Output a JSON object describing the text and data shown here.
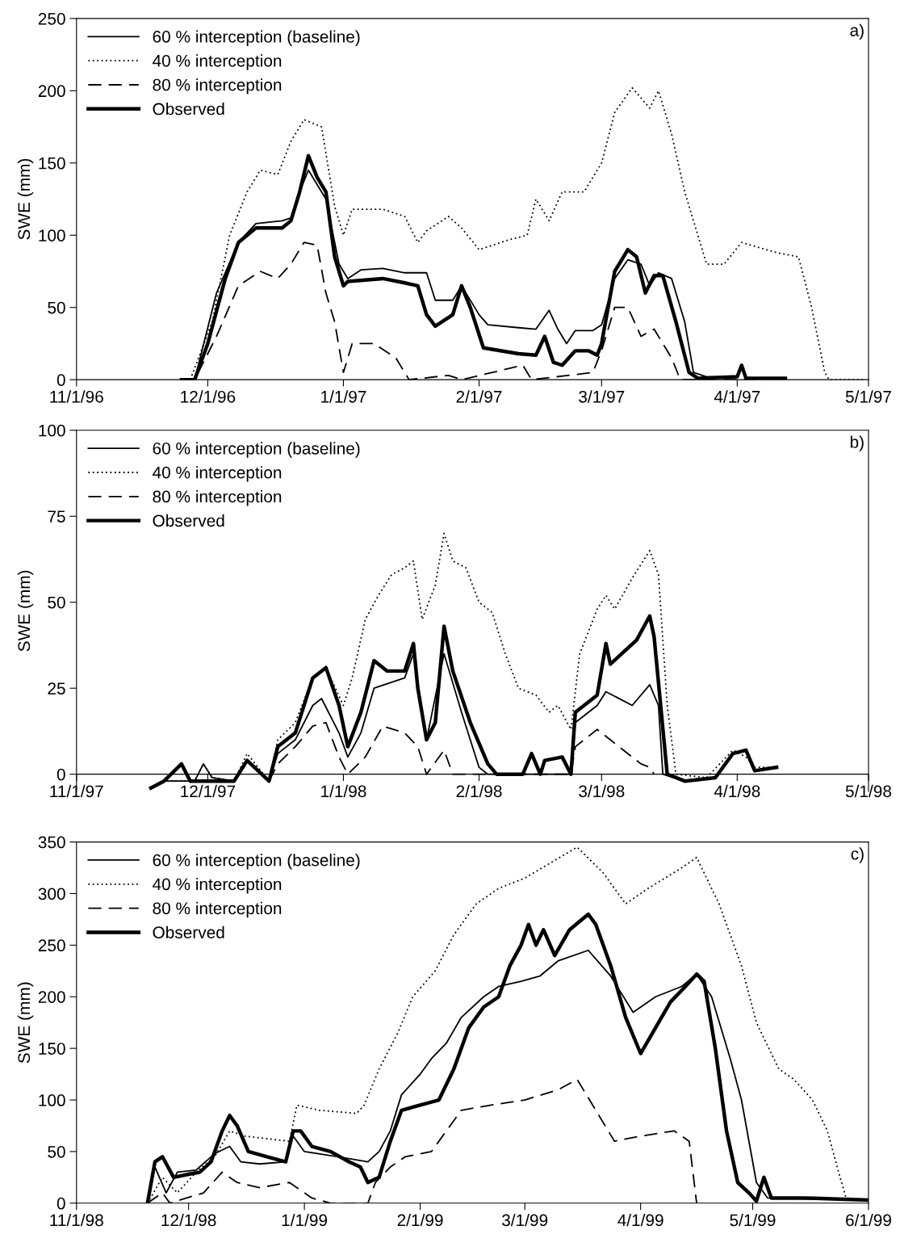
{
  "chart_data": [
    {
      "type": "line",
      "ylabel": "SWE (mm)",
      "annotations": [
        "a)"
      ],
      "legend": "top left",
      "grid": false,
      "xlim": [
        "1996-11-01",
        "1997-05-01"
      ],
      "xticks": [
        {
          "value": "1996-11-01",
          "label": "11/1/96"
        },
        {
          "value": "1996-12-01",
          "label": "12/1/96"
        },
        {
          "value": "1997-01-01",
          "label": "1/1/97"
        },
        {
          "value": "1997-02-01",
          "label": "2/1/97"
        },
        {
          "value": "1997-03-01",
          "label": "3/1/97"
        },
        {
          "value": "1997-04-01",
          "label": "4/1/97"
        },
        {
          "value": "1997-05-01",
          "label": "5/1/97"
        }
      ],
      "ylim": [
        0,
        250
      ],
      "yticks": [
        0,
        50,
        100,
        150,
        200,
        250
      ],
      "series": [
        {
          "name": "60 % interception (baseline)",
          "color": "#000000",
          "line_style": "solid",
          "x": [
            "1996-11-25",
            "1996-11-28",
            "1996-12-03",
            "1996-12-08",
            "1996-12-12",
            "1996-12-18",
            "1996-12-20",
            "1996-12-22",
            "1996-12-24",
            "1996-12-28",
            "1996-12-31",
            "1997-01-02",
            "1997-01-05",
            "1997-01-10",
            "1997-01-15",
            "1997-01-20",
            "1997-01-22",
            "1997-01-26",
            "1997-01-28",
            "1997-02-01",
            "1997-02-03",
            "1997-02-10",
            "1997-02-14",
            "1997-02-17",
            "1997-02-19",
            "1997-02-21",
            "1997-02-23",
            "1997-02-27",
            "1997-03-01",
            "1997-03-04",
            "1997-03-07",
            "1997-03-10",
            "1997-03-12",
            "1997-03-14",
            "1997-03-17",
            "1997-03-20",
            "1997-03-22",
            "1997-03-25",
            "1997-04-01",
            "1997-04-02",
            "1997-04-03",
            "1997-04-12"
          ],
          "values": [
            0,
            0,
            60,
            95,
            108,
            110,
            112,
            130,
            145,
            125,
            80,
            70,
            76,
            77,
            74,
            74,
            55,
            55,
            65,
            45,
            38,
            36,
            35,
            48,
            35,
            25,
            34,
            34,
            38,
            70,
            83,
            80,
            65,
            74,
            70,
            40,
            5,
            2,
            2,
            10,
            1,
            1
          ]
        },
        {
          "name": "40 % interception",
          "color": "#000000",
          "line_style": "dotted",
          "x": [
            "1996-11-25",
            "1996-11-27",
            "1996-12-02",
            "1996-12-06",
            "1996-12-10",
            "1996-12-13",
            "1996-12-17",
            "1996-12-20",
            "1996-12-23",
            "1996-12-27",
            "1996-12-30",
            "1997-01-01",
            "1997-01-03",
            "1997-01-10",
            "1997-01-15",
            "1997-01-18",
            "1997-01-20",
            "1997-01-25",
            "1997-01-28",
            "1997-02-01",
            "1997-02-08",
            "1997-02-12",
            "1997-02-14",
            "1997-02-17",
            "1997-02-20",
            "1997-02-25",
            "1997-03-01",
            "1997-03-04",
            "1997-03-08",
            "1997-03-12",
            "1997-03-14",
            "1997-03-17",
            "1997-03-20",
            "1997-03-25",
            "1997-03-29",
            "1997-04-02",
            "1997-04-10",
            "1997-04-15",
            "1997-04-18",
            "1997-04-21",
            "1997-04-22",
            "1997-04-30"
          ],
          "values": [
            0,
            0,
            40,
            100,
            130,
            145,
            142,
            165,
            180,
            175,
            120,
            100,
            118,
            118,
            113,
            95,
            103,
            113,
            105,
            90,
            97,
            100,
            125,
            110,
            130,
            130,
            150,
            185,
            202,
            188,
            200,
            170,
            130,
            80,
            80,
            95,
            88,
            85,
            50,
            5,
            0,
            0
          ]
        },
        {
          "name": "80 % interception",
          "color": "#000000",
          "line_style": "dashed",
          "x": [
            "1996-11-25",
            "1996-11-28",
            "1996-12-03",
            "1996-12-08",
            "1996-12-13",
            "1996-12-17",
            "1996-12-20",
            "1996-12-23",
            "1996-12-26",
            "1996-12-28",
            "1996-12-30",
            "1997-01-01",
            "1997-01-03",
            "1997-01-08",
            "1997-01-13",
            "1997-01-16",
            "1997-01-25",
            "1997-01-28",
            "1997-02-11",
            "1997-02-13",
            "1997-02-27",
            "1997-03-01",
            "1997-03-04",
            "1997-03-07",
            "1997-03-10",
            "1997-03-13",
            "1997-03-17",
            "1997-03-19",
            "1997-04-05"
          ],
          "values": [
            0,
            0,
            30,
            65,
            75,
            70,
            80,
            95,
            93,
            60,
            40,
            5,
            25,
            25,
            15,
            0,
            3,
            0,
            10,
            0,
            5,
            20,
            50,
            50,
            30,
            35,
            15,
            0,
            0
          ]
        },
        {
          "name": "Observed",
          "color": "#000000",
          "line_style": "solid",
          "x": [
            "1996-11-25",
            "1996-11-28",
            "1996-12-01",
            "1996-12-05",
            "1996-12-08",
            "1996-12-12",
            "1996-12-18",
            "1996-12-20",
            "1996-12-22",
            "1996-12-24",
            "1996-12-26",
            "1996-12-28",
            "1996-12-30",
            "1997-01-01",
            "1997-01-02",
            "1997-01-10",
            "1997-01-15",
            "1997-01-18",
            "1997-01-20",
            "1997-01-22",
            "1997-01-26",
            "1997-01-28",
            "1997-01-30",
            "1997-02-02",
            "1997-02-10",
            "1997-02-14",
            "1997-02-16",
            "1997-02-18",
            "1997-02-20",
            "1997-02-23",
            "1997-02-26",
            "1997-02-28",
            "1997-03-01",
            "1997-03-04",
            "1997-03-07",
            "1997-03-09",
            "1997-03-11",
            "1997-03-13",
            "1997-03-15",
            "1997-03-18",
            "1997-03-21",
            "1997-03-23",
            "1997-04-01",
            "1997-04-02",
            "1997-04-03",
            "1997-04-12"
          ],
          "values": [
            0,
            0,
            25,
            70,
            95,
            105,
            105,
            110,
            130,
            155,
            140,
            130,
            85,
            65,
            68,
            70,
            67,
            65,
            45,
            37,
            45,
            65,
            50,
            22,
            18,
            17,
            30,
            12,
            10,
            20,
            20,
            17,
            25,
            75,
            90,
            85,
            60,
            72,
            72,
            40,
            5,
            1,
            2,
            10,
            1,
            1
          ]
        }
      ]
    },
    {
      "type": "line",
      "ylabel": "SWE (mm)",
      "annotations": [
        "b)"
      ],
      "legend": "top left",
      "grid": false,
      "xlim": [
        "1997-11-01",
        "1998-05-01"
      ],
      "xticks": [
        {
          "value": "1997-11-01",
          "label": "11/1/97"
        },
        {
          "value": "1997-12-01",
          "label": "12/1/97"
        },
        {
          "value": "1998-01-01",
          "label": "1/1/98"
        },
        {
          "value": "1998-02-01",
          "label": "2/1/98"
        },
        {
          "value": "1998-03-01",
          "label": "3/1/98"
        },
        {
          "value": "1998-04-01",
          "label": "4/1/98"
        },
        {
          "value": "1998-05-01",
          "label": "5/1/98"
        }
      ],
      "ylim": [
        -5,
        100
      ],
      "yticks": [
        0,
        25,
        50,
        75,
        100
      ],
      "series": [
        {
          "name": "60 % interception (baseline)",
          "color": "#000000",
          "line_style": "solid",
          "x": [
            "1997-11-18",
            "1997-11-21",
            "1997-11-28",
            "1997-11-30",
            "1997-12-02",
            "1997-12-07",
            "1997-12-10",
            "1997-12-15",
            "1997-12-17",
            "1997-12-21",
            "1997-12-25",
            "1997-12-27",
            "1997-12-31",
            "1998-01-02",
            "1998-01-05",
            "1998-01-08",
            "1998-01-15",
            "1998-01-17",
            "1998-01-20",
            "1998-01-24",
            "1998-01-28",
            "1998-02-01",
            "1998-02-03",
            "1998-02-22",
            "1998-02-23",
            "1998-02-28",
            "1998-03-02",
            "1998-03-08",
            "1998-03-12",
            "1998-03-14",
            "1998-03-15",
            "1998-03-20",
            "1998-03-27",
            "1998-03-31",
            "1998-04-03",
            "1998-04-05",
            "1998-04-10"
          ],
          "values": [
            -4,
            -2,
            -2,
            3,
            -1,
            -2,
            4,
            -2,
            6,
            10,
            20,
            22,
            12,
            5,
            12,
            25,
            28,
            35,
            10,
            35,
            18,
            2,
            0,
            0,
            15,
            20,
            24,
            20,
            26,
            20,
            0,
            -2,
            -1,
            6,
            7,
            1,
            2
          ]
        },
        {
          "name": "40 % interception",
          "color": "#000000",
          "line_style": "dotted",
          "x": [
            "1997-11-18",
            "1997-11-21",
            "1997-11-28",
            "1997-11-30",
            "1997-12-02",
            "1997-12-07",
            "1997-12-10",
            "1997-12-15",
            "1997-12-17",
            "1997-12-21",
            "1997-12-25",
            "1997-12-28",
            "1998-01-01",
            "1998-01-03",
            "1998-01-06",
            "1998-01-09",
            "1998-01-12",
            "1998-01-15",
            "1998-01-17",
            "1998-01-19",
            "1998-01-22",
            "1998-01-24",
            "1998-01-26",
            "1998-01-29",
            "1998-02-01",
            "1998-02-04",
            "1998-02-07",
            "1998-02-10",
            "1998-02-14",
            "1998-02-17",
            "1998-02-19",
            "1998-02-22",
            "1998-02-24",
            "1998-02-28",
            "1998-03-02",
            "1998-03-04",
            "1998-03-08",
            "1998-03-12",
            "1998-03-14",
            "1998-03-16",
            "1998-03-18",
            "1998-03-25",
            "1998-03-31",
            "1998-04-03",
            "1998-04-05",
            "1998-04-10"
          ],
          "values": [
            -4,
            -2,
            -2,
            3,
            -1,
            -2,
            6,
            -2,
            10,
            15,
            28,
            31,
            20,
            28,
            45,
            52,
            58,
            60,
            62,
            45,
            55,
            70,
            62,
            60,
            50,
            47,
            35,
            25,
            23,
            18,
            20,
            13,
            35,
            48,
            52,
            48,
            57,
            65,
            58,
            20,
            0,
            -1,
            7,
            5,
            2,
            2
          ]
        },
        {
          "name": "80 % interception",
          "color": "#000000",
          "line_style": "dashed",
          "x": [
            "1997-12-15",
            "1997-12-17",
            "1997-12-21",
            "1997-12-25",
            "1997-12-28",
            "1997-12-31",
            "1998-01-02",
            "1998-01-06",
            "1998-01-10",
            "1998-01-15",
            "1998-01-18",
            "1998-01-20",
            "1998-01-24",
            "1998-01-26",
            "1998-02-22",
            "1998-02-23",
            "1998-02-28",
            "1998-03-03",
            "1998-03-08",
            "1998-03-10",
            "1998-03-12",
            "1998-03-13"
          ],
          "values": [
            -2,
            3,
            8,
            14,
            15,
            5,
            0,
            5,
            14,
            12,
            8,
            0,
            7,
            0,
            0,
            8,
            13,
            10,
            5,
            3,
            2,
            0
          ]
        },
        {
          "name": "Observed",
          "color": "#000000",
          "line_style": "solid",
          "x": [
            "1997-11-18",
            "1997-11-21",
            "1997-11-25",
            "1997-11-27",
            "1997-12-07",
            "1997-12-10",
            "1997-12-15",
            "1997-12-17",
            "1997-12-21",
            "1997-12-25",
            "1997-12-28",
            "1997-12-31",
            "1998-01-02",
            "1998-01-05",
            "1998-01-08",
            "1998-01-11",
            "1998-01-15",
            "1998-01-17",
            "1998-01-18",
            "1998-01-20",
            "1998-01-22",
            "1998-01-24",
            "1998-01-26",
            "1998-01-30",
            "1998-02-03",
            "1998-02-05",
            "1998-02-11",
            "1998-02-13",
            "1998-02-15",
            "1998-02-16",
            "1998-02-20",
            "1998-02-22",
            "1998-02-23",
            "1998-02-28",
            "1998-03-02",
            "1998-03-03",
            "1998-03-09",
            "1998-03-12",
            "1998-03-13",
            "1998-03-16",
            "1998-03-20",
            "1998-03-27",
            "1998-03-31",
            "1998-04-03",
            "1998-04-05",
            "1998-04-10"
          ],
          "values": [
            -4,
            -2,
            3,
            -2,
            -2,
            4,
            -2,
            8,
            12,
            28,
            31,
            20,
            8,
            18,
            33,
            30,
            30,
            38,
            25,
            10,
            15,
            43,
            30,
            15,
            3,
            0,
            0,
            6,
            0,
            4,
            5,
            0,
            18,
            23,
            38,
            32,
            39,
            46,
            40,
            0,
            -2,
            -1,
            6,
            7,
            1,
            2
          ]
        }
      ]
    },
    {
      "type": "line",
      "ylabel": "SWE (mm)",
      "annotations": [
        "c)"
      ],
      "legend": "top left",
      "grid": false,
      "xlim": [
        "1998-11-01",
        "1999-06-01"
      ],
      "xticks": [
        {
          "value": "1998-11-01",
          "label": "11/1/98"
        },
        {
          "value": "1998-12-01",
          "label": "12/1/98"
        },
        {
          "value": "1999-01-01",
          "label": "1/1/99"
        },
        {
          "value": "1999-02-01",
          "label": "2/1/99"
        },
        {
          "value": "1999-03-01",
          "label": "3/1/99"
        },
        {
          "value": "1999-04-01",
          "label": "4/1/99"
        },
        {
          "value": "1999-05-01",
          "label": "5/1/99"
        },
        {
          "value": "1999-06-01",
          "label": "6/1/99"
        }
      ],
      "ylim": [
        0,
        350
      ],
      "yticks": [
        0,
        50,
        100,
        150,
        200,
        250,
        300,
        350
      ],
      "series": [
        {
          "name": "60 % interception (baseline)",
          "color": "#000000",
          "line_style": "solid",
          "x": [
            "1998-11-20",
            "1998-11-22",
            "1998-11-25",
            "1998-11-28",
            "1998-12-03",
            "1998-12-08",
            "1998-12-12",
            "1998-12-15",
            "1998-12-20",
            "1998-12-27",
            "1998-12-29",
            "1999-01-01",
            "1999-01-10",
            "1999-01-18",
            "1999-01-21",
            "1999-01-24",
            "1999-01-27",
            "1999-02-01",
            "1999-02-04",
            "1999-02-08",
            "1999-02-12",
            "1999-02-18",
            "1999-02-22",
            "1999-02-28",
            "1999-03-05",
            "1999-03-10",
            "1999-03-18",
            "1999-03-24",
            "1999-03-30",
            "1999-04-05",
            "1999-04-12",
            "1999-04-16",
            "1999-04-20",
            "1999-04-25",
            "1999-04-28",
            "1999-05-02",
            "1999-05-05",
            "1999-06-01"
          ],
          "values": [
            0,
            35,
            10,
            30,
            32,
            48,
            55,
            40,
            38,
            40,
            65,
            50,
            45,
            40,
            50,
            70,
            105,
            125,
            140,
            155,
            180,
            200,
            210,
            215,
            220,
            235,
            245,
            220,
            185,
            200,
            210,
            222,
            200,
            140,
            100,
            20,
            5,
            3
          ]
        },
        {
          "name": "40 % interception",
          "color": "#000000",
          "line_style": "dotted",
          "x": [
            "1998-11-20",
            "1998-11-24",
            "1998-11-28",
            "1998-12-03",
            "1998-12-08",
            "1998-12-12",
            "1998-12-16",
            "1998-12-28",
            "1998-12-30",
            "1999-01-05",
            "1999-01-15",
            "1999-01-17",
            "1999-01-21",
            "1999-01-26",
            "1999-01-30",
            "1999-02-05",
            "1999-02-10",
            "1999-02-16",
            "1999-02-22",
            "1999-03-01",
            "1999-03-08",
            "1999-03-15",
            "1999-03-22",
            "1999-03-28",
            "1999-04-03",
            "1999-04-12",
            "1999-04-16",
            "1999-04-22",
            "1999-04-28",
            "1999-05-02",
            "1999-05-08",
            "1999-05-12",
            "1999-05-17",
            "1999-05-21",
            "1999-05-24",
            "1999-05-26",
            "1999-06-01"
          ],
          "values": [
            0,
            25,
            10,
            30,
            45,
            70,
            65,
            60,
            95,
            90,
            87,
            95,
            130,
            165,
            200,
            225,
            260,
            290,
            305,
            315,
            330,
            345,
            320,
            290,
            305,
            325,
            335,
            290,
            230,
            175,
            130,
            120,
            100,
            70,
            30,
            5,
            3
          ]
        },
        {
          "name": "80 % interception",
          "color": "#000000",
          "line_style": "dashed",
          "x": [
            "1998-11-20",
            "1998-11-24",
            "1998-11-26",
            "1998-12-05",
            "1998-12-10",
            "1998-12-14",
            "1998-12-20",
            "1998-12-28",
            "1999-01-03",
            "1999-01-08",
            "1999-01-18",
            "1999-01-20",
            "1999-01-24",
            "1999-01-28",
            "1999-02-04",
            "1999-02-08",
            "1999-02-12",
            "1999-02-20",
            "1999-03-01",
            "1999-03-10",
            "1999-03-15",
            "1999-03-20",
            "1999-03-25",
            "1999-04-01",
            "1999-04-10",
            "1999-04-14",
            "1999-04-16"
          ],
          "values": [
            0,
            10,
            0,
            10,
            30,
            20,
            15,
            20,
            5,
            0,
            0,
            20,
            35,
            45,
            50,
            70,
            90,
            95,
            100,
            110,
            120,
            90,
            60,
            65,
            70,
            60,
            0
          ]
        },
        {
          "name": "Observed",
          "color": "#000000",
          "line_style": "solid",
          "x": [
            "1998-11-20",
            "1998-11-22",
            "1998-11-24",
            "1998-11-27",
            "1998-12-01",
            "1998-12-04",
            "1998-12-07",
            "1998-12-10",
            "1998-12-12",
            "1998-12-14",
            "1998-12-17",
            "1998-12-22",
            "1998-12-27",
            "1998-12-29",
            "1998-12-31",
            "1999-01-03",
            "1999-01-08",
            "1999-01-13",
            "1999-01-16",
            "1999-01-18",
            "1999-01-21",
            "1999-01-24",
            "1999-01-27",
            "1999-02-01",
            "1999-02-06",
            "1999-02-10",
            "1999-02-14",
            "1999-02-18",
            "1999-02-22",
            "1999-02-25",
            "1999-02-28",
            "1999-03-02",
            "1999-03-04",
            "1999-03-06",
            "1999-03-09",
            "1999-03-13",
            "1999-03-18",
            "1999-03-20",
            "1999-03-24",
            "1999-03-28",
            "1999-04-01",
            "1999-04-05",
            "1999-04-09",
            "1999-04-13",
            "1999-04-16",
            "1999-04-18",
            "1999-04-21",
            "1999-04-24",
            "1999-04-27",
            "1999-04-30",
            "1999-05-02",
            "1999-05-04",
            "1999-05-06",
            "1999-05-15",
            "1999-06-01"
          ],
          "values": [
            0,
            40,
            45,
            25,
            28,
            30,
            40,
            70,
            85,
            75,
            50,
            45,
            40,
            70,
            70,
            55,
            50,
            40,
            35,
            20,
            25,
            60,
            90,
            95,
            100,
            130,
            170,
            190,
            200,
            230,
            250,
            270,
            250,
            265,
            240,
            265,
            280,
            270,
            230,
            180,
            145,
            170,
            195,
            210,
            222,
            215,
            150,
            70,
            20,
            10,
            2,
            25,
            5,
            5,
            3
          ]
        }
      ]
    }
  ]
}
